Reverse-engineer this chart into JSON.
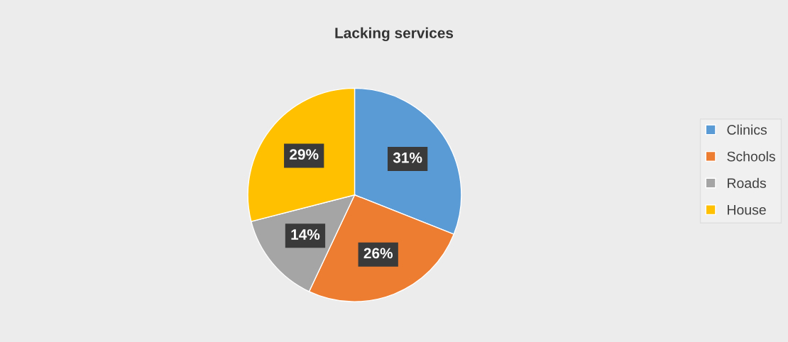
{
  "chart_data": {
    "type": "pie",
    "title": "Lacking services",
    "categories": [
      "Clinics",
      "Schools",
      "Roads",
      "House"
    ],
    "values": [
      31,
      26,
      14,
      29
    ],
    "colors": [
      "#5b9bd5",
      "#ed7d31",
      "#a5a5a5",
      "#ffc000"
    ],
    "value_labels": [
      "31%",
      "26%",
      "14%",
      "29%"
    ],
    "legend": "right"
  }
}
